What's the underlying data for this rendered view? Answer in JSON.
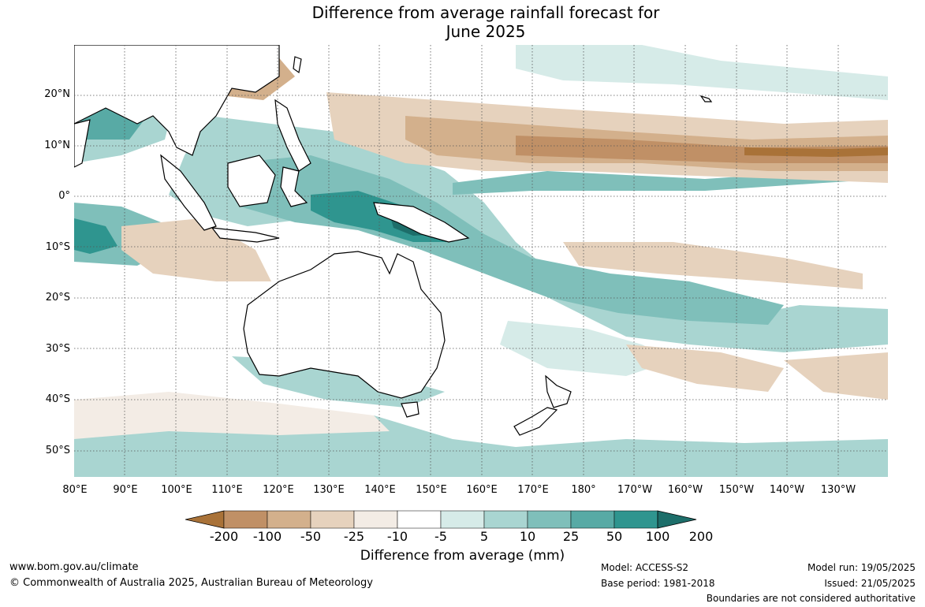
{
  "title": {
    "line1": "Difference from average rainfall forecast for",
    "line2": "June 2025"
  },
  "lat_labels": [
    "20°N",
    "10°N",
    "0°",
    "10°S",
    "20°S",
    "30°S",
    "40°S",
    "50°S"
  ],
  "lon_labels": [
    "80°E",
    "90°E",
    "100°E",
    "110°E",
    "120°E",
    "130°E",
    "140°E",
    "150°E",
    "160°E",
    "170°E",
    "180°",
    "170°W",
    "160°W",
    "150°W",
    "140°W",
    "130°W"
  ],
  "colorbar": {
    "title": "Difference from average (mm)",
    "ticks": [
      "-200",
      "-100",
      "-50",
      "-25",
      "-10",
      "-5",
      "5",
      "10",
      "25",
      "50",
      "100",
      "200"
    ],
    "colors": [
      "#a97238",
      "#c09066",
      "#d3b08c",
      "#e6d2bd",
      "#f3ece5",
      "#ffffff",
      "#d6ebe8",
      "#a9d5d1",
      "#7fbfba",
      "#58aaa5",
      "#2f958f",
      "#1d6e6a"
    ]
  },
  "footer": {
    "url": "www.bom.gov.au/climate",
    "copyright": "© Commonwealth of Australia 2025, Australian Bureau of Meteorology",
    "model": "Model: ACCESS-S2",
    "base_period": "Base period: 1981-2018",
    "model_run": "Model run: 19/05/2025",
    "issued": "Issued: 21/05/2025",
    "disclaimer": "Boundaries are not considered authoritative"
  }
}
